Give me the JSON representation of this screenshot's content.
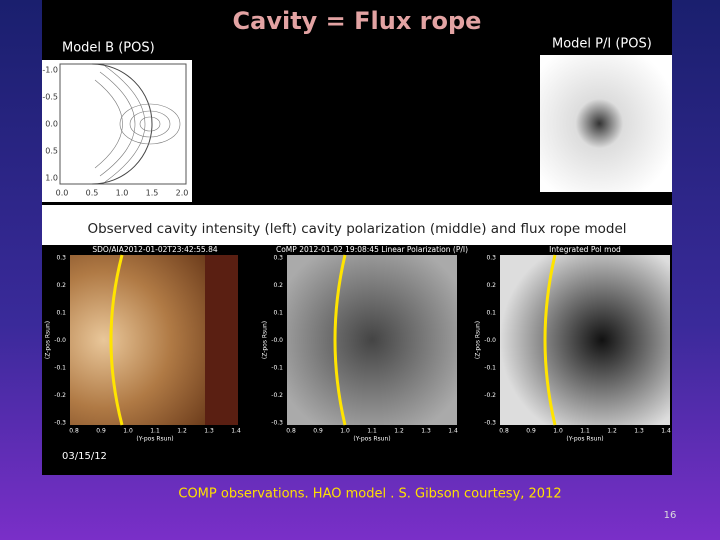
{
  "slide": {
    "title": "Cavity = Flux rope",
    "model_b": {
      "label": "Model B (POS)",
      "yticks": [
        "-1.0",
        "-0.5",
        "0.0",
        "0.5",
        "1.0"
      ],
      "xticks": [
        "0.0",
        "0.5",
        "1.0",
        "1.5",
        "2.0"
      ]
    },
    "model_pi": {
      "label": "Model P/I (POS)"
    },
    "observed_heading": "Observed cavity intensity (left) cavity polarization (middle) and flux rope model",
    "panels": [
      {
        "header": "SDO/AIA2012-01-02T23:42:55.84"
      },
      {
        "header": "CoMP 2012-01-02 19:08:45 Linear Polarization (P/I)"
      },
      {
        "header": "Integrated Pol mod"
      }
    ],
    "panel_yticks": [
      "0.3",
      "0.2",
      "0.1",
      "-0.0",
      "-0.1",
      "-0.2",
      "-0.3"
    ],
    "panel_xticks": [
      "0.8",
      "0.9",
      "1.0",
      "1.1",
      "1.2",
      "1.3",
      "1.4"
    ],
    "panel_ylabel": "(Z-pos Rsun)",
    "panel_xlabel": "(Y-pos Rsun)",
    "date": "03/15/12",
    "caption": "COMP observations. HAO model . S. Gibson courtesy, 2012",
    "page_number": "16"
  }
}
